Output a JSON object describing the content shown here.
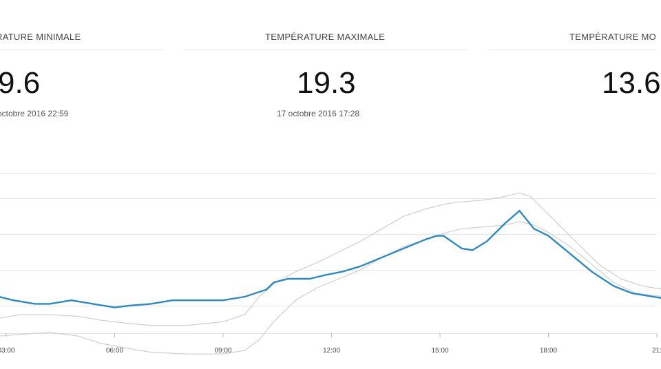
{
  "stats": [
    {
      "title": "RATURE MINIMALE",
      "value": "9.6",
      "date": "octobre 2016 22:59"
    },
    {
      "title": "TEMPÉRATURE MAXIMALE",
      "value": "19.3",
      "date": "17 octobre 2016 17:28"
    },
    {
      "title": "TEMPÉRATURE MO",
      "value": "13.6",
      "date": ""
    }
  ],
  "chart_data": {
    "type": "line",
    "x_ticks": [
      "03:00",
      "06:00",
      "09:00",
      "12:00",
      "15:00",
      "18:00",
      "21:"
    ],
    "x_range_hours": [
      2.8,
      21.2
    ],
    "series": [
      {
        "role": "main",
        "color": "#2a8bc4",
        "x": [
          2.8,
          3.2,
          3.8,
          4.2,
          4.8,
          5.4,
          6.0,
          6.4,
          7.0,
          7.6,
          8.0,
          9.0,
          9.6,
          10.2,
          10.4,
          10.8,
          11.4,
          11.8,
          12.3,
          12.8,
          13.4,
          14.0,
          14.6,
          14.9,
          15.1,
          15.6,
          15.9,
          16.3,
          16.8,
          17.2,
          17.6,
          18.0,
          18.6,
          19.2,
          19.8,
          20.3,
          20.9,
          21.2
        ],
        "y": [
          12.5,
          12.4,
          12.3,
          12.3,
          12.4,
          12.3,
          12.2,
          12.25,
          12.3,
          12.4,
          12.4,
          12.4,
          12.5,
          12.7,
          12.9,
          13.0,
          13.0,
          13.1,
          13.2,
          13.35,
          13.6,
          13.85,
          14.1,
          14.2,
          14.2,
          13.85,
          13.8,
          14.05,
          14.55,
          14.9,
          14.4,
          14.2,
          13.7,
          13.2,
          12.8,
          12.6,
          12.5,
          12.45
        ]
      },
      {
        "role": "upper-band",
        "color": "#d2cdd0",
        "x": [
          2.8,
          3.4,
          4.2,
          5.0,
          5.6,
          6.4,
          7.0,
          8.0,
          9.0,
          9.6,
          10.0,
          10.4,
          11.0,
          11.6,
          12.2,
          12.8,
          13.4,
          14.0,
          14.6,
          15.2,
          15.6,
          16.2,
          16.8,
          17.2,
          17.5,
          17.8,
          18.2,
          18.8,
          19.4,
          20.0,
          20.6,
          21.2
        ],
        "y": [
          11.9,
          12.0,
          12.0,
          11.95,
          11.85,
          11.75,
          11.7,
          11.7,
          11.8,
          12.0,
          12.5,
          12.85,
          13.2,
          13.45,
          13.75,
          14.05,
          14.4,
          14.75,
          14.95,
          15.1,
          15.15,
          15.2,
          15.3,
          15.4,
          15.3,
          15.0,
          14.6,
          14.0,
          13.4,
          13.0,
          12.8,
          12.7
        ]
      },
      {
        "role": "lower-band",
        "color": "#d2cdd0",
        "x": [
          2.8,
          3.4,
          4.2,
          5.0,
          5.6,
          6.4,
          7.0,
          8.0,
          9.0,
          9.6,
          10.0,
          10.4,
          11.0,
          11.6,
          12.2,
          12.8,
          13.4,
          14.0,
          14.6,
          15.2,
          15.6,
          16.2,
          16.8,
          17.2,
          17.6,
          18.0,
          18.6,
          19.2,
          19.8,
          20.4,
          21.2
        ],
        "y": [
          11.4,
          11.45,
          11.5,
          11.4,
          11.2,
          11.05,
          10.95,
          10.9,
          10.9,
          11.0,
          11.3,
          11.8,
          12.4,
          12.75,
          13.0,
          13.25,
          13.6,
          13.9,
          14.1,
          14.3,
          14.4,
          14.45,
          14.5,
          14.6,
          14.5,
          14.3,
          13.9,
          13.4,
          12.9,
          12.6,
          12.5
        ]
      }
    ]
  }
}
